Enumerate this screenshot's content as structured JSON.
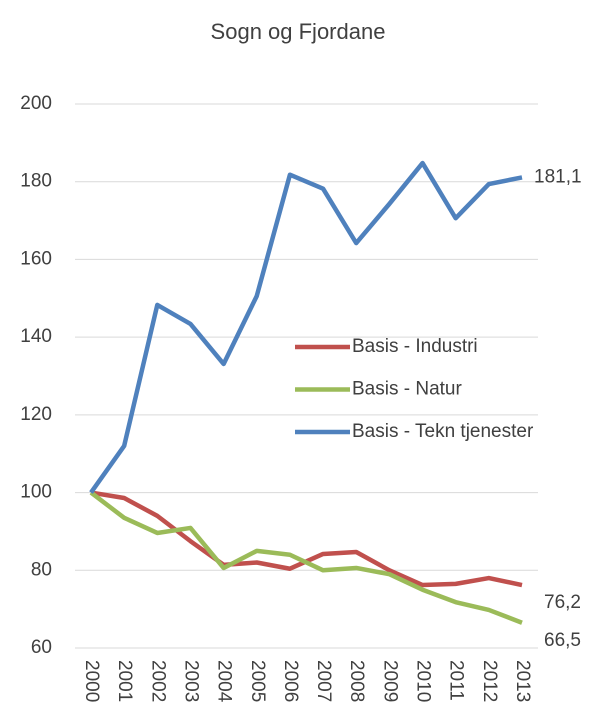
{
  "chart_data": {
    "type": "line",
    "title": "Sogn og Fjordane",
    "x": [
      "2000",
      "2001",
      "2002",
      "2003",
      "2004",
      "2005",
      "2006",
      "2007",
      "2008",
      "2009",
      "2010",
      "2011",
      "2012",
      "2013"
    ],
    "ylim": [
      60,
      200
    ],
    "yticks": [
      60,
      80,
      100,
      120,
      140,
      160,
      180,
      200
    ],
    "grid": true,
    "legend": "right",
    "series": [
      {
        "name": "Basis - Industri",
        "color": "#c0504d",
        "values": [
          100,
          98.6,
          94,
          87.5,
          81.4,
          82,
          80.4,
          84.2,
          84.7,
          80,
          76.2,
          76.5,
          78,
          76.2
        ],
        "end_label": "76,2"
      },
      {
        "name": "Basis - Natur",
        "color": "#9bbb59",
        "values": [
          100,
          93.5,
          89.6,
          90.9,
          80.6,
          85,
          84,
          80,
          80.6,
          79,
          75,
          71.8,
          69.8,
          66.5
        ],
        "end_label": "66,5"
      },
      {
        "name": "Basis - Tekn tjenester",
        "color": "#4f81bd",
        "values": [
          100,
          112,
          148.3,
          143.4,
          133.1,
          150.6,
          181.8,
          178.2,
          164.2,
          174.3,
          184.8,
          170.6,
          179.4,
          181.1
        ],
        "end_label": "181,1"
      }
    ]
  }
}
